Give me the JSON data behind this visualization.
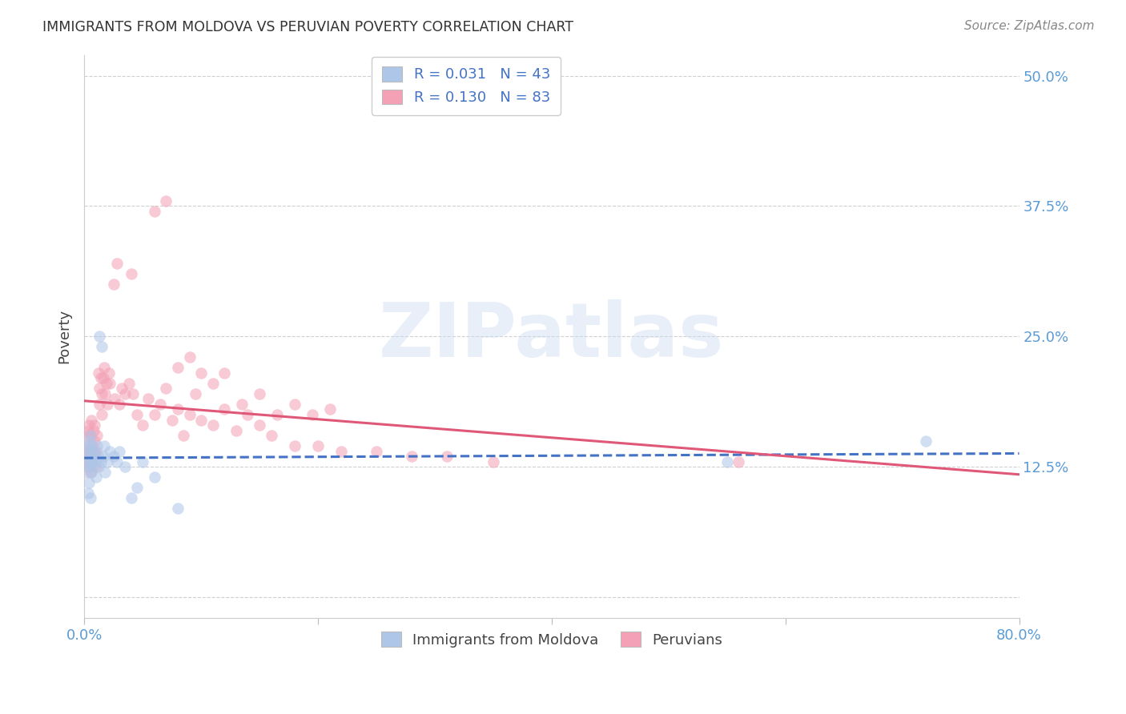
{
  "title": "IMMIGRANTS FROM MOLDOVA VS PERUVIAN POVERTY CORRELATION CHART",
  "source": "Source: ZipAtlas.com",
  "ylabel": "Poverty",
  "xlabel": "",
  "watermark": "ZIPatlas",
  "xlim": [
    0.0,
    0.8
  ],
  "ylim": [
    -0.02,
    0.52
  ],
  "xticks": [
    0.0,
    0.2,
    0.4,
    0.6,
    0.8
  ],
  "xticklabels": [
    "0.0%",
    "",
    "",
    "",
    "80.0%"
  ],
  "ytick_positions": [
    0.0,
    0.125,
    0.25,
    0.375,
    0.5
  ],
  "yticklabels_right": [
    "",
    "12.5%",
    "25.0%",
    "37.5%",
    "50.0%"
  ],
  "grid_color": "#d0d0d0",
  "background_color": "#ffffff",
  "moldova_color": "#aec6e8",
  "peru_color": "#f4a0b5",
  "moldova_line_color": "#4472c4",
  "peru_line_color": "#e05878",
  "legend_r_moldova": "R = 0.031",
  "legend_n_moldova": "N = 43",
  "legend_r_peru": "R = 0.130",
  "legend_n_peru": "N = 83",
  "marker_size": 110,
  "marker_alpha": 0.55,
  "moldova_points_x": [
    0.001,
    0.002,
    0.002,
    0.003,
    0.003,
    0.003,
    0.004,
    0.004,
    0.004,
    0.005,
    0.005,
    0.005,
    0.006,
    0.006,
    0.007,
    0.007,
    0.008,
    0.008,
    0.009,
    0.01,
    0.01,
    0.011,
    0.012,
    0.012,
    0.013,
    0.014,
    0.015,
    0.016,
    0.017,
    0.018,
    0.02,
    0.022,
    0.025,
    0.028,
    0.03,
    0.035,
    0.04,
    0.045,
    0.05,
    0.06,
    0.08,
    0.55,
    0.72
  ],
  "moldova_points_y": [
    0.13,
    0.14,
    0.12,
    0.135,
    0.145,
    0.1,
    0.125,
    0.15,
    0.11,
    0.13,
    0.155,
    0.095,
    0.14,
    0.12,
    0.13,
    0.145,
    0.135,
    0.125,
    0.14,
    0.13,
    0.115,
    0.145,
    0.135,
    0.125,
    0.25,
    0.13,
    0.24,
    0.135,
    0.145,
    0.12,
    0.13,
    0.14,
    0.135,
    0.13,
    0.14,
    0.125,
    0.095,
    0.105,
    0.13,
    0.115,
    0.085,
    0.13,
    0.15
  ],
  "peru_points_x": [
    0.001,
    0.002,
    0.002,
    0.003,
    0.003,
    0.003,
    0.004,
    0.004,
    0.005,
    0.005,
    0.005,
    0.006,
    0.006,
    0.007,
    0.007,
    0.008,
    0.008,
    0.009,
    0.009,
    0.01,
    0.01,
    0.011,
    0.012,
    0.013,
    0.013,
    0.014,
    0.015,
    0.015,
    0.016,
    0.017,
    0.018,
    0.019,
    0.02,
    0.021,
    0.022,
    0.025,
    0.026,
    0.028,
    0.03,
    0.032,
    0.035,
    0.038,
    0.04,
    0.042,
    0.045,
    0.05,
    0.055,
    0.06,
    0.065,
    0.07,
    0.075,
    0.08,
    0.085,
    0.09,
    0.095,
    0.1,
    0.11,
    0.12,
    0.13,
    0.14,
    0.15,
    0.16,
    0.18,
    0.2,
    0.22,
    0.25,
    0.28,
    0.31,
    0.35,
    0.06,
    0.07,
    0.08,
    0.09,
    0.1,
    0.11,
    0.12,
    0.135,
    0.15,
    0.165,
    0.18,
    0.195,
    0.21,
    0.56
  ],
  "peru_points_y": [
    0.14,
    0.13,
    0.155,
    0.125,
    0.16,
    0.145,
    0.135,
    0.165,
    0.14,
    0.12,
    0.155,
    0.13,
    0.17,
    0.145,
    0.135,
    0.16,
    0.14,
    0.15,
    0.165,
    0.14,
    0.125,
    0.155,
    0.215,
    0.2,
    0.185,
    0.21,
    0.195,
    0.175,
    0.21,
    0.22,
    0.195,
    0.205,
    0.185,
    0.215,
    0.205,
    0.3,
    0.19,
    0.32,
    0.185,
    0.2,
    0.195,
    0.205,
    0.31,
    0.195,
    0.175,
    0.165,
    0.19,
    0.175,
    0.185,
    0.2,
    0.17,
    0.18,
    0.155,
    0.175,
    0.195,
    0.17,
    0.165,
    0.18,
    0.16,
    0.175,
    0.165,
    0.155,
    0.145,
    0.145,
    0.14,
    0.14,
    0.135,
    0.135,
    0.13,
    0.37,
    0.38,
    0.22,
    0.23,
    0.215,
    0.205,
    0.215,
    0.185,
    0.195,
    0.175,
    0.185,
    0.175,
    0.18,
    0.13
  ]
}
